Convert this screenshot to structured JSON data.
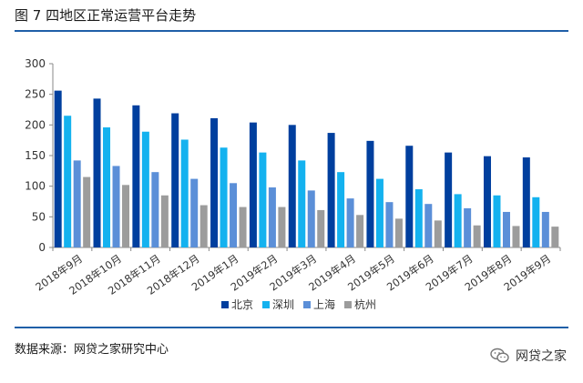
{
  "header": {
    "title": "图 7 四地区正常运营平台走势"
  },
  "footer": {
    "source": "数据来源：网贷之家研究中心"
  },
  "watermark": {
    "text": "网贷之家",
    "icon": "wechat-icon"
  },
  "chart_data": {
    "type": "bar",
    "title": "",
    "xlabel": "",
    "ylabel": "",
    "ylim": [
      0,
      300
    ],
    "yticks": [
      0,
      50,
      100,
      150,
      200,
      250,
      300
    ],
    "grid": false,
    "legend_position": "bottom",
    "categories": [
      "2018年9月",
      "2018年10月",
      "2018年11月",
      "2018年12月",
      "2019年1月",
      "2019年2月",
      "2019年3月",
      "2019年4月",
      "2019年5月",
      "2019年6月",
      "2019年7月",
      "2019年8月",
      "2019年9月"
    ],
    "series": [
      {
        "name": "北京",
        "color": "#003f9e",
        "values": [
          256,
          243,
          232,
          219,
          211,
          204,
          200,
          187,
          174,
          166,
          155,
          149,
          147
        ]
      },
      {
        "name": "深圳",
        "color": "#14b2ef",
        "values": [
          215,
          196,
          189,
          176,
          163,
          155,
          142,
          123,
          112,
          95,
          87,
          85,
          82
        ]
      },
      {
        "name": "上海",
        "color": "#5b8fd8",
        "values": [
          142,
          133,
          123,
          112,
          105,
          98,
          93,
          80,
          74,
          71,
          64,
          58,
          58
        ]
      },
      {
        "name": "杭州",
        "color": "#9c9c9c",
        "values": [
          115,
          102,
          85,
          69,
          66,
          66,
          61,
          53,
          47,
          44,
          36,
          35,
          34
        ]
      }
    ]
  }
}
